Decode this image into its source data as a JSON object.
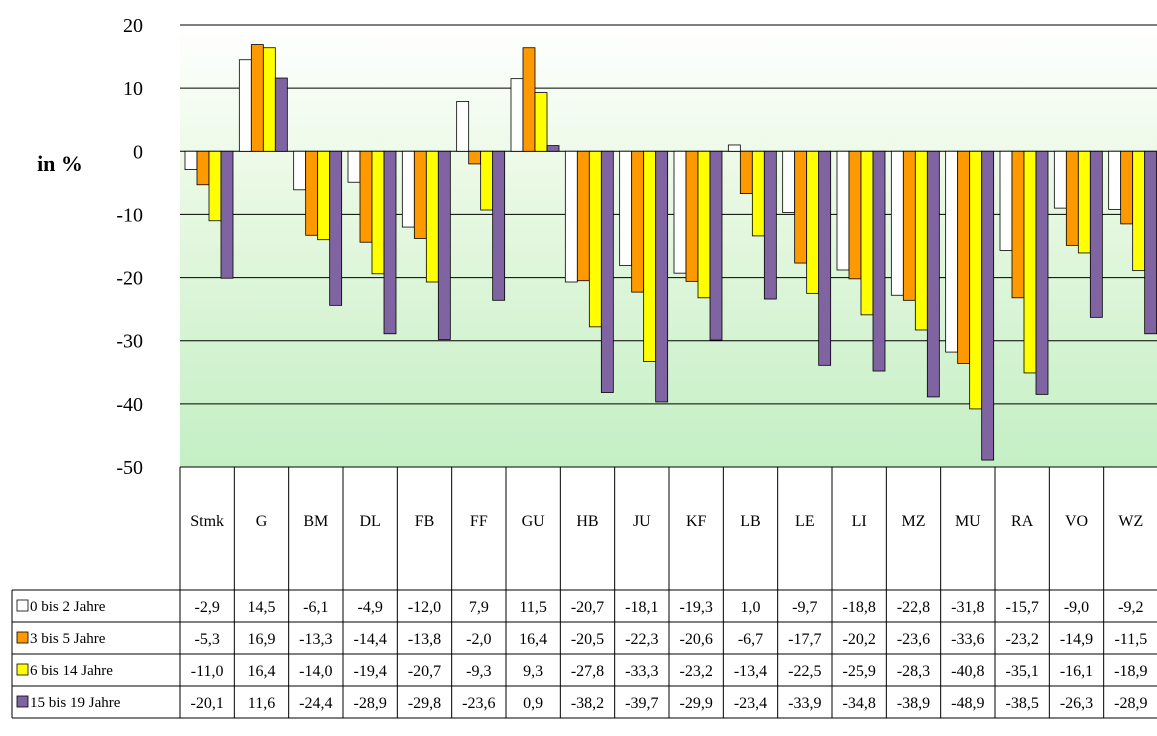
{
  "chart_data": {
    "type": "bar",
    "title": "",
    "xlabel": "",
    "ylabel": "in %",
    "ylim": [
      -50,
      20
    ],
    "yticks": [
      "20",
      "10",
      "0",
      "-10",
      "-20",
      "-30",
      "-40",
      "-50"
    ],
    "grid": true,
    "legend": "data table below chart",
    "categories": [
      "Stmk",
      "G",
      "BM",
      "DL",
      "FB",
      "FF",
      "GU",
      "HB",
      "JU",
      "KF",
      "LB",
      "LE",
      "LI",
      "MZ",
      "MU",
      "RA",
      "VO",
      "WZ"
    ],
    "series": [
      {
        "name": "0 bis 2 Jahre",
        "color": "#ffffff",
        "values": [
          -2.9,
          14.5,
          -6.1,
          -4.9,
          -12.0,
          7.9,
          11.5,
          -20.7,
          -18.1,
          -19.3,
          1.0,
          -9.7,
          -18.8,
          -22.8,
          -31.8,
          -15.7,
          -9.0,
          -9.2
        ],
        "labels": [
          "-2,9",
          "14,5",
          "-6,1",
          "-4,9",
          "-12,0",
          "7,9",
          "11,5",
          "-20,7",
          "-18,1",
          "-19,3",
          "1,0",
          "-9,7",
          "-18,8",
          "-22,8",
          "-31,8",
          "-15,7",
          "-9,0",
          "-9,2"
        ]
      },
      {
        "name": "3 bis 5 Jahre",
        "color": "#ff9900",
        "values": [
          -5.3,
          16.9,
          -13.3,
          -14.4,
          -13.8,
          -2.0,
          16.4,
          -20.5,
          -22.3,
          -20.6,
          -6.7,
          -17.7,
          -20.2,
          -23.6,
          -33.6,
          -23.2,
          -14.9,
          -11.5
        ],
        "labels": [
          "-5,3",
          "16,9",
          "-13,3",
          "-14,4",
          "-13,8",
          "-2,0",
          "16,4",
          "-20,5",
          "-22,3",
          "-20,6",
          "-6,7",
          "-17,7",
          "-20,2",
          "-23,6",
          "-33,6",
          "-23,2",
          "-14,9",
          "-11,5"
        ]
      },
      {
        "name": "6 bis 14 Jahre",
        "color": "#ffff00",
        "values": [
          -11.0,
          16.4,
          -14.0,
          -19.4,
          -20.7,
          -9.3,
          9.3,
          -27.8,
          -33.3,
          -23.2,
          -13.4,
          -22.5,
          -25.9,
          -28.3,
          -40.8,
          -35.1,
          -16.1,
          -18.9
        ],
        "labels": [
          "-11,0",
          "16,4",
          "-14,0",
          "-19,4",
          "-20,7",
          "-9,3",
          "9,3",
          "-27,8",
          "-33,3",
          "-23,2",
          "-13,4",
          "-22,5",
          "-25,9",
          "-28,3",
          "-40,8",
          "-35,1",
          "-16,1",
          "-18,9"
        ]
      },
      {
        "name": "15 bis 19 Jahre",
        "color": "#8064a2",
        "values": [
          -20.1,
          11.6,
          -24.4,
          -28.9,
          -29.8,
          -23.6,
          0.9,
          -38.2,
          -39.7,
          -29.9,
          -23.4,
          -33.9,
          -34.8,
          -38.9,
          -48.9,
          -38.5,
          -26.3,
          -28.9
        ],
        "labels": [
          "-20,1",
          "11,6",
          "-24,4",
          "-28,9",
          "-29,8",
          "-23,6",
          "0,9",
          "-38,2",
          "-39,7",
          "-29,9",
          "-23,4",
          "-33,9",
          "-34,8",
          "-38,9",
          "-48,9",
          "-38,5",
          "-26,3",
          "-28,9"
        ]
      }
    ]
  }
}
